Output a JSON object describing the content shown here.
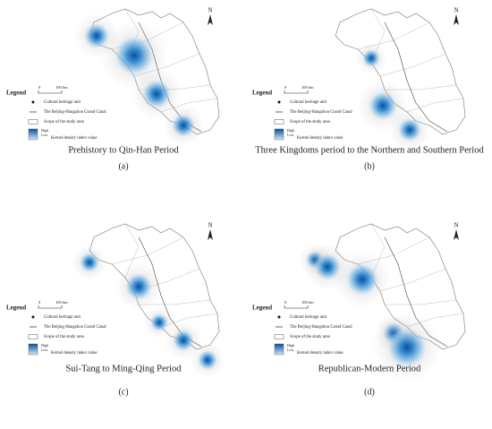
{
  "legend": {
    "title": "Legend",
    "scale_start": "0",
    "scale_end": "100 km",
    "north": "N",
    "items": [
      "Cultural heritage unit",
      "The Beijing-Hangzhou Grand Canal",
      "Scope of the study area",
      "Kernel density index value"
    ],
    "high": "High",
    "low": "Low"
  },
  "panels": [
    {
      "caption": "Prehistory to Qin-Han Period",
      "label": "(a)"
    },
    {
      "caption": "Three Kingdoms period to the Northern and Southern Period",
      "label": "(b)"
    },
    {
      "caption": "Sui-Tang to Ming-Qing Period",
      "label": "(c)"
    },
    {
      "caption": "Republican-Modern Period",
      "label": "(d)"
    }
  ]
}
